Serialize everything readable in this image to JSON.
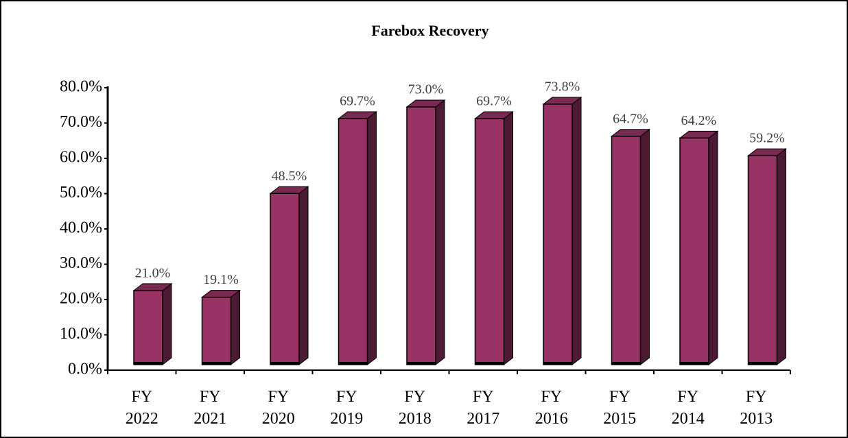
{
  "chart_data": {
    "type": "bar3d",
    "title": "Farebox Recovery",
    "categories": [
      "FY 2022",
      "FY 2021",
      "FY 2020",
      "FY 2019",
      "FY 2018",
      "FY 2017",
      "FY 2016",
      "FY 2015",
      "FY 2014",
      "FY 2013"
    ],
    "values": [
      21.0,
      19.1,
      48.5,
      69.7,
      73.0,
      69.7,
      73.8,
      64.7,
      64.2,
      59.2
    ],
    "value_labels": [
      "21.0%",
      "19.1%",
      "48.5%",
      "69.7%",
      "73.0%",
      "69.7%",
      "73.8%",
      "64.7%",
      "64.2%",
      "59.2%"
    ],
    "color": "#993366",
    "ylim": [
      0,
      80
    ],
    "yticks": [
      {
        "value": 0,
        "label": "0.0%"
      },
      {
        "value": 10,
        "label": "10.0%"
      },
      {
        "value": 20,
        "label": "20.0%"
      },
      {
        "value": 30,
        "label": "30.0%"
      },
      {
        "value": 40,
        "label": "40.0%"
      },
      {
        "value": 50,
        "label": "50.0%"
      },
      {
        "value": 60,
        "label": "60.0%"
      },
      {
        "value": 70,
        "label": "70.0%"
      },
      {
        "value": 80,
        "label": "80.0%"
      }
    ]
  }
}
